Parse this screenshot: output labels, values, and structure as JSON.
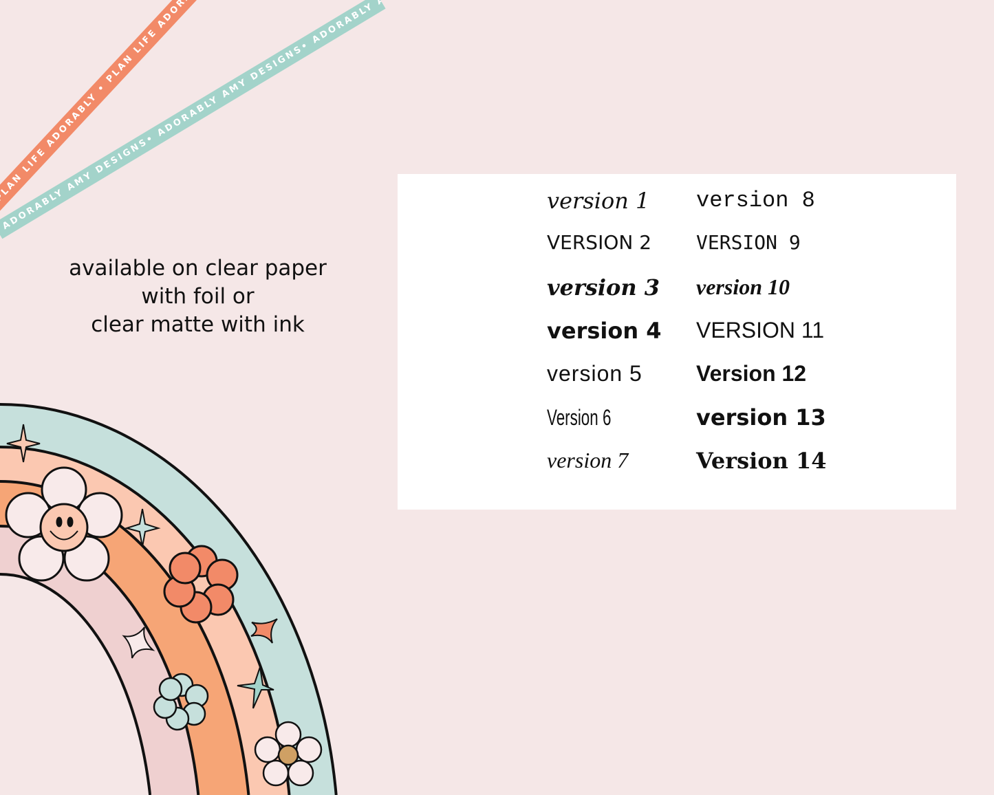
{
  "ribbons": {
    "orange": "PLAN LIFE ADORABLY • PLAN LIFE ADORABLY • PLAN LIFE ADORABLY",
    "teal": "ADORABLY AMY DESIGNS• ADORABLY AMY DESIGNS• ADORABLY AMY DESIGNS"
  },
  "caption": {
    "line1": "available on clear paper",
    "line2": "with foil or",
    "line3": "clear matte with ink"
  },
  "versions": {
    "left": [
      "version 1",
      "VERSION 2",
      "version 3",
      "version 4",
      "version 5",
      "Version 6",
      "version 7"
    ],
    "right": [
      "version 8",
      "VERSION 9",
      "version 10",
      "VERSION 11",
      "Version 12",
      "version 13",
      "Version 14"
    ]
  },
  "colors": {
    "background": "#f5e7e7",
    "teal": "#c6e0dc",
    "peach": "#fbc8b1",
    "orange": "#f6a576",
    "pink": "#efd0d0",
    "coral": "#f28a68"
  }
}
